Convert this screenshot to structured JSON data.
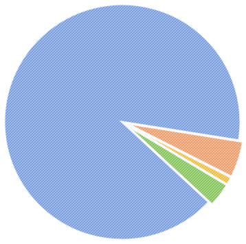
{
  "chart_data": {
    "type": "pie",
    "title": "",
    "legend": "none",
    "slices": [
      {
        "value": 5.0,
        "color": "#f4a46e"
      },
      {
        "value": 1.1,
        "color": "#f6c642"
      },
      {
        "value": 3.3,
        "color": "#8cc85c"
      },
      {
        "value": 90.6,
        "color": "#7fa2e0"
      }
    ],
    "colors": {
      "background": "#ffffff",
      "separator": "#ffffff"
    },
    "hatch": "crosshatch"
  }
}
